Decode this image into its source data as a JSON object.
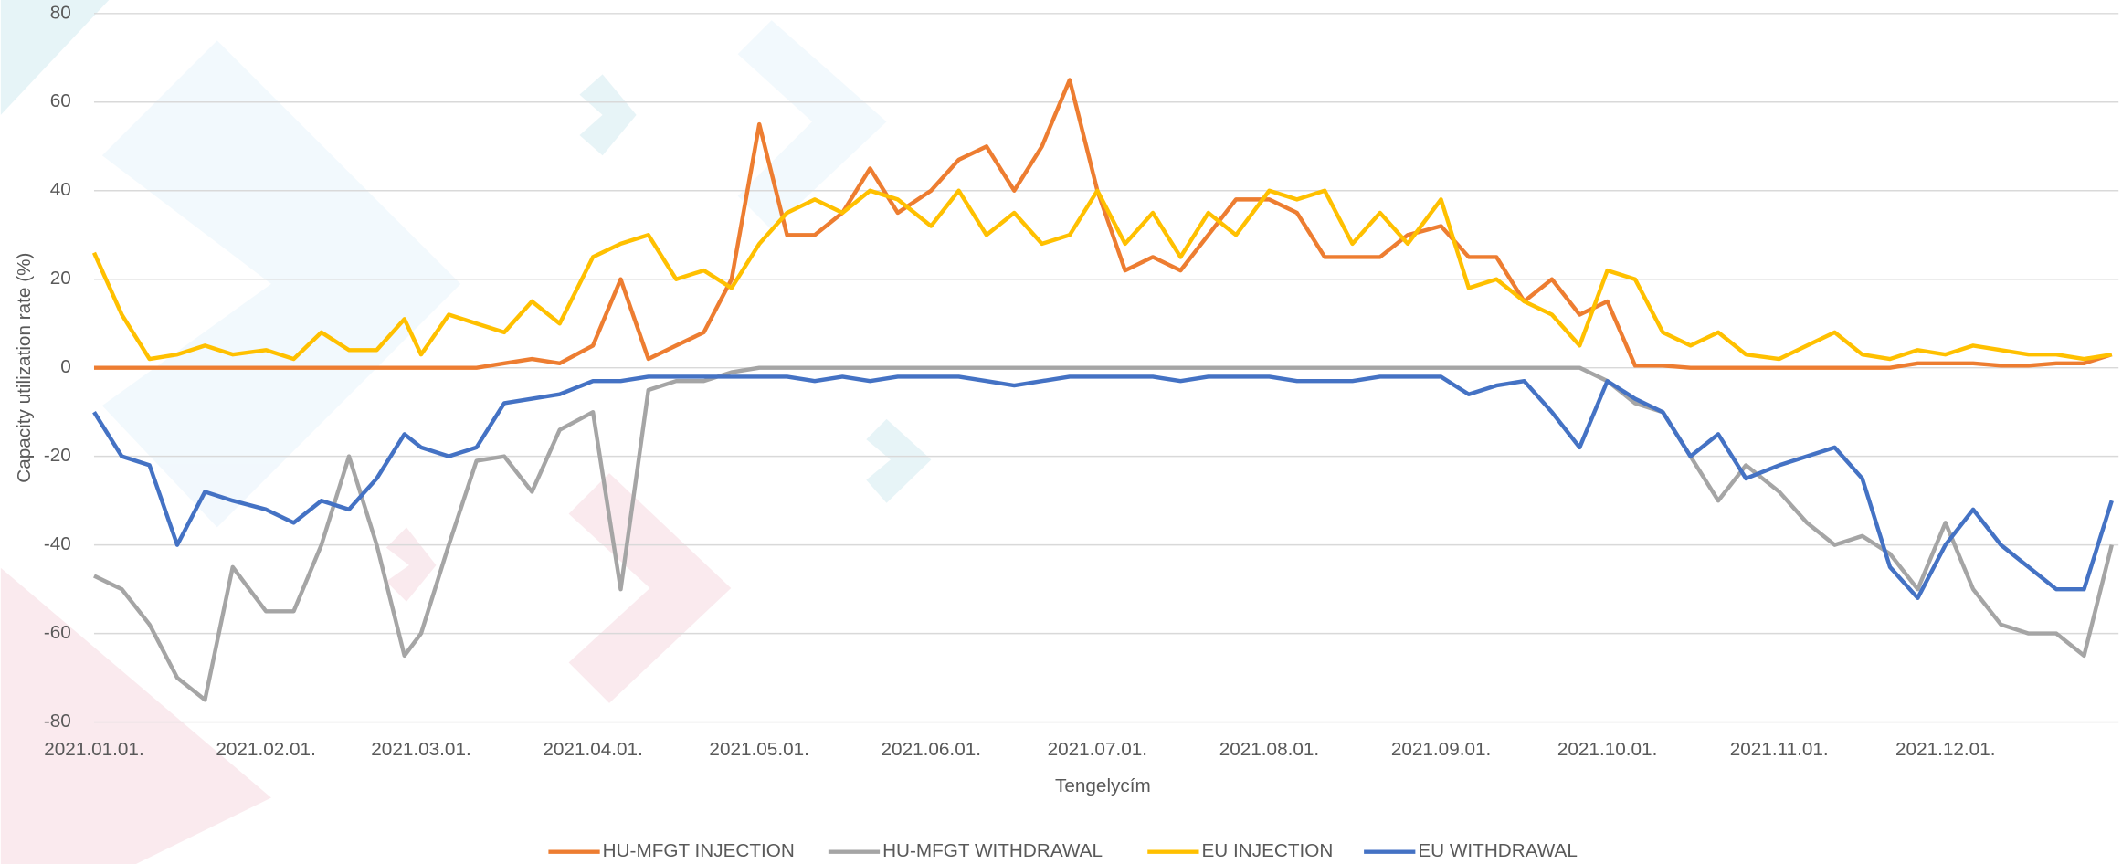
{
  "chart_data": {
    "type": "line",
    "x_label": "Tengelycím",
    "y_label": "Capacity utilization rate (%)",
    "x": [
      "2021.01.01.",
      "2021.01.06.",
      "2021.01.11.",
      "2021.01.16.",
      "2021.01.21.",
      "2021.01.26.",
      "2021.02.01.",
      "2021.02.06.",
      "2021.02.11.",
      "2021.02.16.",
      "2021.02.21.",
      "2021.02.26.",
      "2021.03.01.",
      "2021.03.06.",
      "2021.03.11.",
      "2021.03.16.",
      "2021.03.21.",
      "2021.03.26.",
      "2021.04.01.",
      "2021.04.06.",
      "2021.04.11.",
      "2021.04.16.",
      "2021.04.21.",
      "2021.04.26.",
      "2021.05.01.",
      "2021.05.06.",
      "2021.05.11.",
      "2021.05.16.",
      "2021.05.21.",
      "2021.05.26.",
      "2021.06.01.",
      "2021.06.06.",
      "2021.06.11.",
      "2021.06.16.",
      "2021.06.21.",
      "2021.06.26.",
      "2021.07.01.",
      "2021.07.06.",
      "2021.07.11.",
      "2021.07.16.",
      "2021.07.21.",
      "2021.07.26.",
      "2021.08.01.",
      "2021.08.06.",
      "2021.08.11.",
      "2021.08.16.",
      "2021.08.21.",
      "2021.08.26.",
      "2021.09.01.",
      "2021.09.06.",
      "2021.09.11.",
      "2021.09.16.",
      "2021.09.21.",
      "2021.09.26.",
      "2021.10.01.",
      "2021.10.06.",
      "2021.10.11.",
      "2021.10.16.",
      "2021.10.21.",
      "2021.10.26.",
      "2021.11.01.",
      "2021.11.06.",
      "2021.11.11.",
      "2021.11.16.",
      "2021.11.21.",
      "2021.11.26.",
      "2021.12.01.",
      "2021.12.06.",
      "2021.12.11.",
      "2021.12.16.",
      "2021.12.21.",
      "2021.12.26.",
      "2021.12.31."
    ],
    "xlim": [
      "2021.01.01.",
      "2021.12.31."
    ],
    "xticks": [
      "2021.01.01.",
      "2021.02.01.",
      "2021.03.01.",
      "2021.04.01.",
      "2021.05.01.",
      "2021.06.01.",
      "2021.07.01.",
      "2021.08.01.",
      "2021.09.01.",
      "2021.10.01.",
      "2021.11.01.",
      "2021.12.01."
    ],
    "ylim": [
      -80,
      80
    ],
    "yticks": [
      80,
      60,
      40,
      20,
      0,
      -20,
      -40,
      -60,
      -80
    ],
    "grid": true,
    "legend": "bottom",
    "series": [
      {
        "name": "HU-MFGT INJECTION",
        "color": "#ed7d31",
        "values": [
          0,
          0,
          0,
          0,
          0,
          0,
          0,
          0,
          0,
          0,
          0,
          0,
          0,
          0,
          0,
          1,
          2,
          1,
          5,
          20,
          2,
          5,
          8,
          20,
          55,
          30,
          30,
          35,
          45,
          35,
          40,
          47,
          50,
          40,
          50,
          65,
          40,
          22,
          25,
          22,
          30,
          38,
          38,
          35,
          25,
          25,
          25,
          30,
          32,
          25,
          25,
          15,
          20,
          12,
          15,
          0.5,
          0.5,
          0,
          0,
          0,
          0,
          0,
          0,
          0,
          0,
          1,
          1,
          1,
          0.5,
          0.5,
          1,
          1,
          3
        ]
      },
      {
        "name": "HU-MFGT WITHDRAWAL",
        "color": "#a5a5a5",
        "values": [
          -47,
          -50,
          -58,
          -70,
          -75,
          -45,
          -55,
          -55,
          -40,
          -20,
          -40,
          -65,
          -60,
          -40,
          -21,
          -20,
          -28,
          -14,
          -10,
          -50,
          -5,
          -3,
          -3,
          -1,
          0,
          0,
          0,
          0,
          0,
          0,
          0,
          0,
          0,
          0,
          0,
          0,
          0,
          0,
          0,
          0,
          0,
          0,
          0,
          0,
          0,
          0,
          0,
          0,
          0,
          0,
          0,
          0,
          0,
          0,
          -3,
          -8,
          -10,
          -20,
          -30,
          -22,
          -28,
          -35,
          -40,
          -38,
          -42,
          -50,
          -35,
          -50,
          -58,
          -60,
          -60,
          -65,
          -40
        ]
      },
      {
        "name": "EU INJECTION",
        "color": "#ffc000",
        "values": [
          26,
          12,
          2,
          3,
          5,
          3,
          4,
          2,
          8,
          4,
          4,
          11,
          3,
          12,
          10,
          8,
          15,
          10,
          25,
          28,
          30,
          20,
          22,
          18,
          28,
          35,
          38,
          35,
          40,
          38,
          32,
          40,
          30,
          35,
          28,
          30,
          40,
          28,
          35,
          25,
          35,
          30,
          40,
          38,
          40,
          28,
          35,
          28,
          38,
          18,
          20,
          15,
          12,
          5,
          22,
          20,
          8,
          5,
          8,
          3,
          2,
          5,
          8,
          3,
          2,
          4,
          3,
          5,
          4,
          3,
          3,
          2,
          3
        ]
      },
      {
        "name": "EU WITHDRAWAL",
        "color": "#4472c4",
        "values": [
          -10,
          -20,
          -22,
          -40,
          -28,
          -30,
          -32,
          -35,
          -30,
          -32,
          -25,
          -15,
          -18,
          -20,
          -18,
          -8,
          -7,
          -6,
          -3,
          -3,
          -2,
          -2,
          -2,
          -2,
          -2,
          -2,
          -3,
          -2,
          -3,
          -2,
          -2,
          -2,
          -3,
          -4,
          -3,
          -2,
          -2,
          -2,
          -2,
          -3,
          -2,
          -2,
          -2,
          -3,
          -3,
          -3,
          -2,
          -2,
          -2,
          -6,
          -4,
          -3,
          -10,
          -18,
          -3,
          -7,
          -10,
          -20,
          -15,
          -25,
          -22,
          -20,
          -18,
          -25,
          -45,
          -52,
          -40,
          -32,
          -40,
          -45,
          -50,
          -50,
          -30
        ]
      }
    ]
  }
}
